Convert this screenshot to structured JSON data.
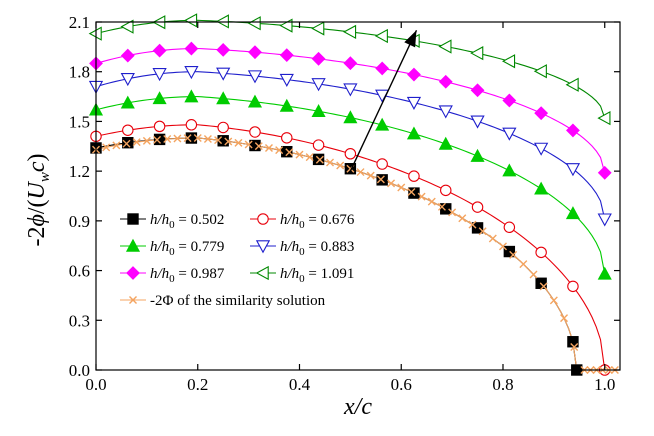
{
  "chart_data": {
    "type": "line",
    "title": "",
    "xlabel": "x/c",
    "ylabel": "-2ϕ/(U_w c)",
    "xlim": [
      0.0,
      1.03
    ],
    "ylim": [
      0.0,
      2.1
    ],
    "xticks": [
      "0.0",
      "0.2",
      "0.4",
      "0.6",
      "0.8",
      "1.0"
    ],
    "yticks": [
      "0.0",
      "0.3",
      "0.6",
      "0.9",
      "1.2",
      "1.5",
      "1.8",
      "2.1"
    ],
    "grid": false,
    "legend_position": "bottom-left",
    "arrow": {
      "from": [
        0.5,
        1.2
      ],
      "to": [
        0.63,
        2.05
      ]
    },
    "series": [
      {
        "name": "h/h0 = 0.502",
        "marker": "square-filled",
        "color": "#000000",
        "xend": 0.945,
        "peak_x": 0.2,
        "peak_y": 1.4,
        "start_y": 1.34
      },
      {
        "name": "h/h0 = 0.676",
        "marker": "circle-open",
        "color": "#e8000b",
        "xend": 1.0,
        "peak_x": 0.2,
        "peak_y": 1.48,
        "start_y": 1.41
      },
      {
        "name": "h/h0 = 0.779",
        "marker": "triangle-up-filled",
        "color": "#00cc00",
        "xend": 1.0,
        "peak_x": 0.2,
        "peak_y": 1.65,
        "start_y": 1.57,
        "end_y": 0.58
      },
      {
        "name": "h/h0 = 0.883",
        "marker": "triangle-down-open",
        "color": "#1f1fcc",
        "xend": 1.0,
        "peak_x": 0.2,
        "peak_y": 1.8,
        "start_y": 1.71,
        "end_y": 0.91
      },
      {
        "name": "h/h0 = 0.987",
        "marker": "diamond-filled",
        "color": "#ff00ff",
        "xend": 1.0,
        "peak_x": 0.2,
        "peak_y": 1.94,
        "start_y": 1.85,
        "end_y": 1.19
      },
      {
        "name": "h/h0 = 1.091",
        "marker": "triangle-left-open",
        "color": "#008800",
        "xend": 1.0,
        "peak_x": 0.2,
        "peak_y": 2.11,
        "start_y": 2.03,
        "end_y": 1.52
      },
      {
        "name": "-2Φ of the similarity solution",
        "marker": "x-cross",
        "color": "#f4a460",
        "xend": 0.945,
        "peak_x": 0.2,
        "peak_y": 1.4,
        "start_y": 1.33,
        "zero_tail_to": 1.03
      }
    ]
  },
  "legend": {
    "entries": [
      {
        "pre": "h/h",
        "sub": "0",
        "post": " = 0.502"
      },
      {
        "pre": "h/h",
        "sub": "0",
        "post": " = 0.676"
      },
      {
        "pre": "h/h",
        "sub": "0",
        "post": " = 0.779"
      },
      {
        "pre": "h/h",
        "sub": "0",
        "post": " = 0.883"
      },
      {
        "pre": "h/h",
        "sub": "0",
        "post": " = 0.987"
      },
      {
        "pre": "h/h",
        "sub": "0",
        "post": " = 1.091"
      },
      {
        "pre": "-2Φ of the similarity solution",
        "sub": "",
        "post": ""
      }
    ]
  },
  "labels": {
    "ylabel_pre": "-2",
    "ylabel_phi": "ϕ",
    "ylabel_mid": "/(",
    "ylabel_u": "U",
    "ylabel_sub": "w",
    "ylabel_c": "c",
    "ylabel_close": ")",
    "xlabel": "x/c"
  }
}
